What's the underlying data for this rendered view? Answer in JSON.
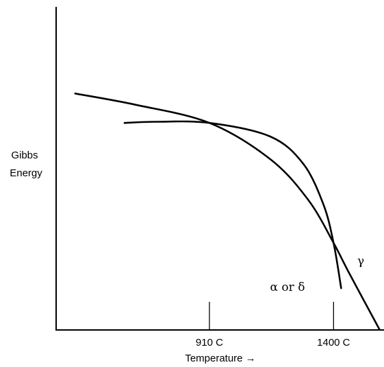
{
  "chart_data": {
    "type": "line",
    "title": "",
    "xlabel": "Temperature →",
    "ylabel_lines": [
      "Gibbs",
      "Energy"
    ],
    "x_ticks": [
      {
        "label": "910 C",
        "value": 910
      },
      {
        "label": "1400 C",
        "value": 1400
      }
    ],
    "xlim": [
      305,
      1599
    ],
    "ylim": [
      0,
      100
    ],
    "grid": false,
    "legend": "none",
    "series": [
      {
        "name": "γ",
        "label_color": "#000000",
        "points": [
          [
            380,
            89
          ],
          [
            620,
            84
          ],
          [
            910,
            76
          ],
          [
            1150,
            60
          ],
          [
            1300,
            42
          ],
          [
            1400,
            23
          ],
          [
            1460,
            10
          ],
          [
            1580,
            -15
          ]
        ]
      },
      {
        "name": "α or δ",
        "points": [
          [
            575,
            76
          ],
          [
            700,
            76.5
          ],
          [
            910,
            76
          ],
          [
            1150,
            70
          ],
          [
            1280,
            58
          ],
          [
            1360,
            40
          ],
          [
            1400,
            23
          ],
          [
            1430,
            3
          ]
        ]
      }
    ]
  },
  "colors": {
    "curve": "#000000",
    "axis": "#000000",
    "background": "#ffffff"
  }
}
